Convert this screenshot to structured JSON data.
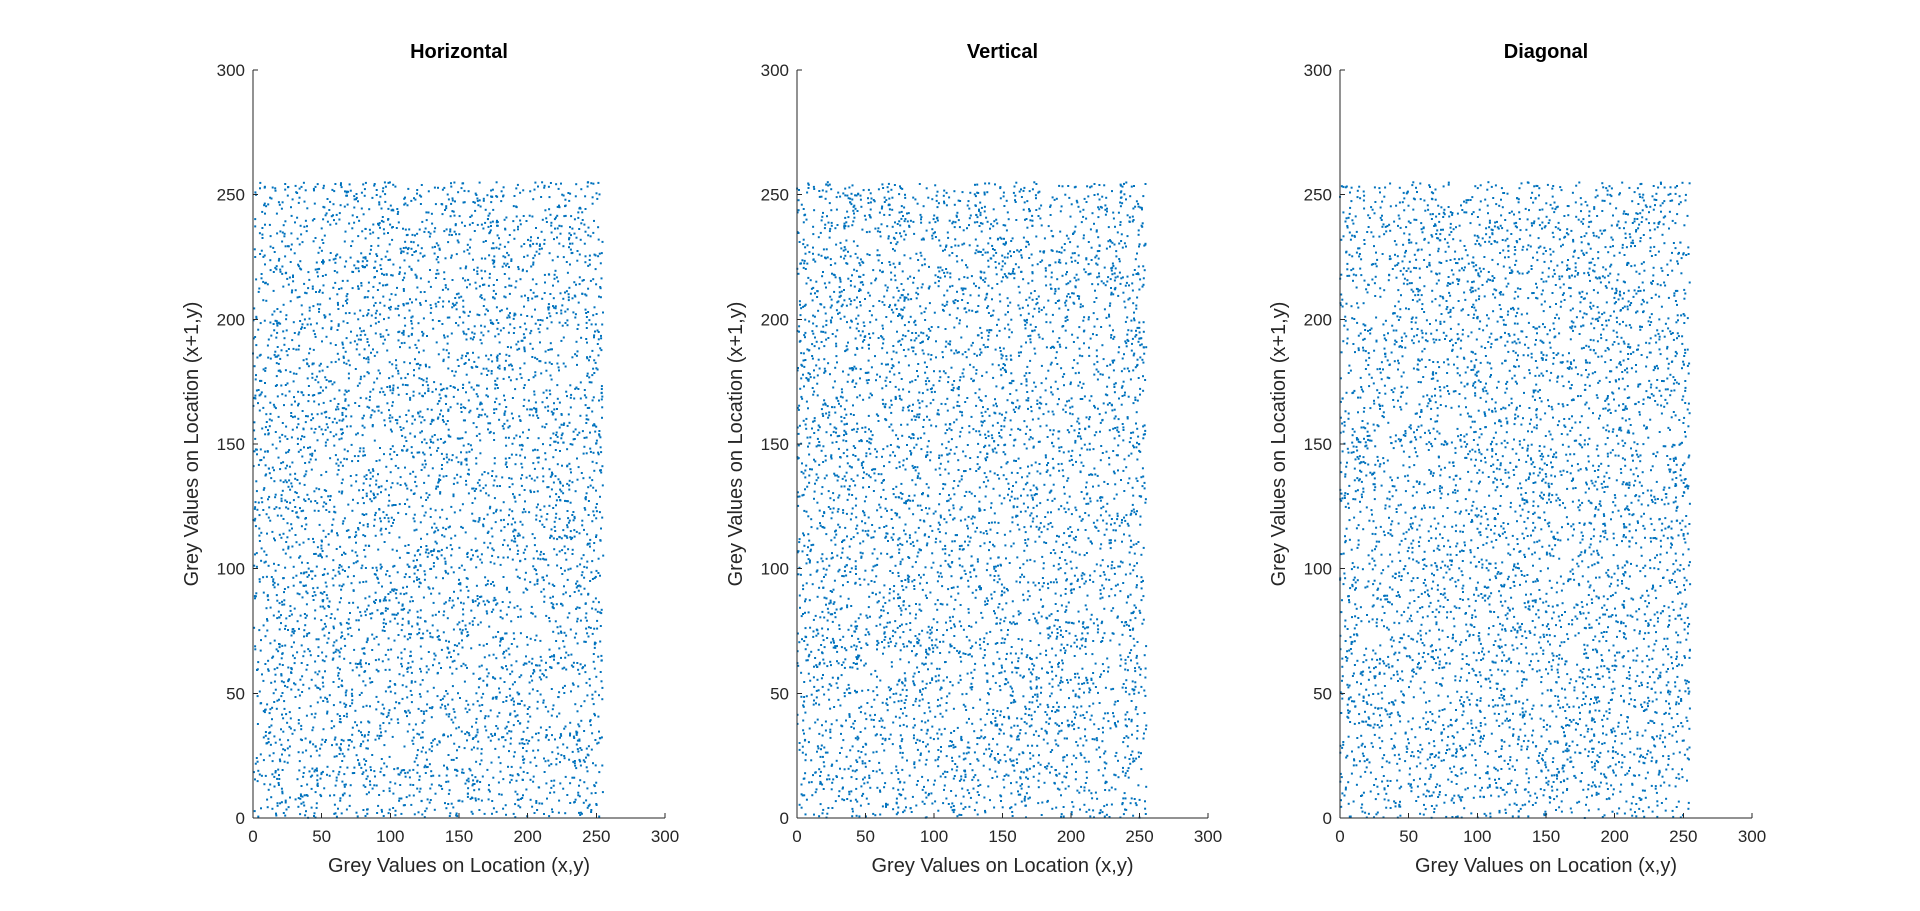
{
  "chart_data": [
    {
      "type": "scatter",
      "title": "Horizontal",
      "xlabel": "Grey Values on Location (x,y)",
      "ylabel": "Grey Values on Location (x+1,y)",
      "xlim": [
        0,
        300
      ],
      "ylim": [
        0,
        300
      ],
      "xticks": [
        "0",
        "50",
        "100",
        "150",
        "200",
        "250",
        "300"
      ],
      "yticks": [
        "0",
        "50",
        "100",
        "150",
        "200",
        "250",
        "300"
      ],
      "grid": false,
      "marker_color": "#0072BD",
      "points_description": "uniformly distributed adjacent-pixel pairs",
      "x_range": [
        0,
        255
      ],
      "y_range": [
        0,
        255
      ],
      "point_count": 5000
    },
    {
      "type": "scatter",
      "title": "Vertical",
      "xlabel": "Grey Values on Location (x,y)",
      "ylabel": "Grey Values on Location (x+1,y)",
      "xlim": [
        0,
        300
      ],
      "ylim": [
        0,
        300
      ],
      "xticks": [
        "0",
        "50",
        "100",
        "150",
        "200",
        "250",
        "300"
      ],
      "yticks": [
        "0",
        "50",
        "100",
        "150",
        "200",
        "250",
        "300"
      ],
      "grid": false,
      "marker_color": "#0072BD",
      "points_description": "uniformly distributed adjacent-pixel pairs",
      "x_range": [
        0,
        255
      ],
      "y_range": [
        0,
        255
      ],
      "point_count": 5000
    },
    {
      "type": "scatter",
      "title": "Diagonal",
      "xlabel": "Grey Values on Location (x,y)",
      "ylabel": "Grey Values on Location (x+1,y)",
      "xlim": [
        0,
        300
      ],
      "ylim": [
        0,
        300
      ],
      "xticks": [
        "0",
        "50",
        "100",
        "150",
        "200",
        "250",
        "300"
      ],
      "yticks": [
        "0",
        "50",
        "100",
        "150",
        "200",
        "250",
        "300"
      ],
      "grid": false,
      "marker_color": "#0072BD",
      "points_description": "uniformly distributed adjacent-pixel pairs",
      "x_range": [
        0,
        255
      ],
      "y_range": [
        0,
        255
      ],
      "point_count": 5000
    }
  ]
}
